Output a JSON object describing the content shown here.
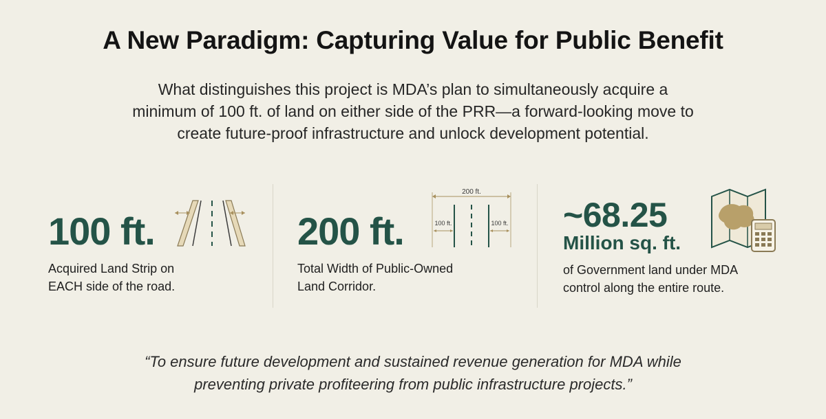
{
  "title": "A New Paradigm: Capturing Value for Public Benefit",
  "intro": {
    "line1": "What distinguishes this project is MDA’s plan to simultaneously acquire a",
    "line2": "minimum of 100 ft. of land on either side of the PRR—a forward-looking move to",
    "line3": "create future-proof infrastructure and unlock development potential."
  },
  "stats": [
    {
      "value": "100 ft.",
      "desc_line1": "Acquired Land Strip on",
      "desc_line2": "EACH side of the road.",
      "icon": "road-strip-icon"
    },
    {
      "value": "200 ft.",
      "desc_line1": "Total Width of Public-Owned",
      "desc_line2": "Land Corridor.",
      "icon": "corridor-width-icon",
      "diagram": {
        "total": "200 ft.",
        "left": "100 ft.",
        "right": "100 ft."
      }
    },
    {
      "value": "~68.25",
      "unit": "Million sq. ft.",
      "desc_line1": "of Government land under MDA",
      "desc_line2": "control along the entire route.",
      "icon": "map-calculator-icon"
    }
  ],
  "quote": {
    "line1": "“To ensure future development and sustained revenue generation for MDA while",
    "line2": "preventing private profiteering from public infrastructure projects.”"
  },
  "colors": {
    "background": "#f1efe6",
    "accent": "#245347",
    "land": "#c9b48a"
  }
}
